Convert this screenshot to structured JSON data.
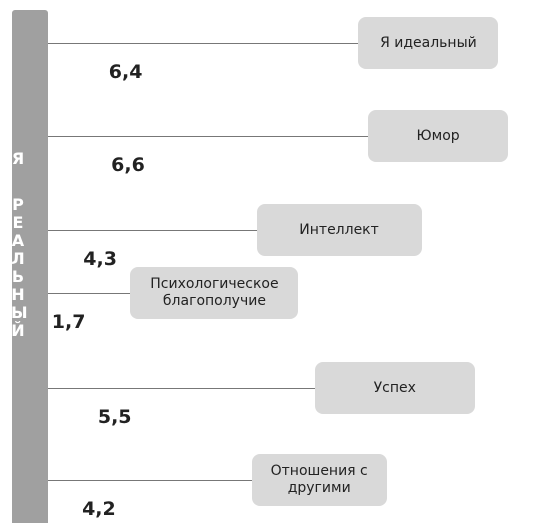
{
  "chart_data": {
    "type": "lollipop",
    "side_label": [
      "Я",
      "РЕАЛЬНЫЙ"
    ],
    "categories": [
      "Я идеальный",
      "Юмор",
      "Интеллект",
      "Психологическое благополучие",
      "Успех",
      "Отношения с другими"
    ],
    "values": [
      6.4,
      6.6,
      4.3,
      1.7,
      5.5,
      4.2
    ],
    "value_labels": [
      "6,4",
      "6,6",
      "4,3",
      "1,7",
      "5,5",
      "4,2"
    ],
    "color": "#d9d9d9"
  }
}
